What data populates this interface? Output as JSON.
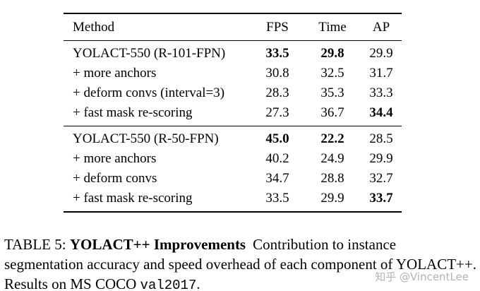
{
  "table": {
    "headers": {
      "method": "Method",
      "fps": "FPS",
      "time": "Time",
      "ap": "AP"
    },
    "groups": [
      {
        "rows": [
          {
            "method": "YOLACT-550 (R-101-FPN)",
            "fps": "33.5",
            "time": "29.8",
            "ap": "29.9"
          },
          {
            "method": "+ more anchors",
            "fps": "30.8",
            "time": "32.5",
            "ap": "31.7"
          },
          {
            "method": "+ deform convs (interval=3)",
            "fps": "28.3",
            "time": "35.3",
            "ap": "33.3"
          },
          {
            "method": "+ fast mask re-scoring",
            "fps": "27.3",
            "time": "36.7",
            "ap": "34.4"
          }
        ]
      },
      {
        "rows": [
          {
            "method": "YOLACT-550 (R-50-FPN)",
            "fps": "45.0",
            "time": "22.2",
            "ap": "28.5"
          },
          {
            "method": "+ more anchors",
            "fps": "40.2",
            "time": "24.9",
            "ap": "29.9"
          },
          {
            "method": "+ deform convs",
            "fps": "34.7",
            "time": "28.8",
            "ap": "32.7"
          },
          {
            "method": "+ fast mask re-scoring",
            "fps": "33.5",
            "time": "29.9",
            "ap": "33.7"
          }
        ]
      }
    ]
  },
  "caption": {
    "label": "TABLE 5:",
    "title": "YOLACT++ Improvements",
    "body": "Contribution to instance segmentation accuracy and speed overhead of each component of YOLACT++. Results on MS COCO ",
    "code": "val2017",
    "period": "."
  },
  "watermark": "知乎 @VincentLee"
}
